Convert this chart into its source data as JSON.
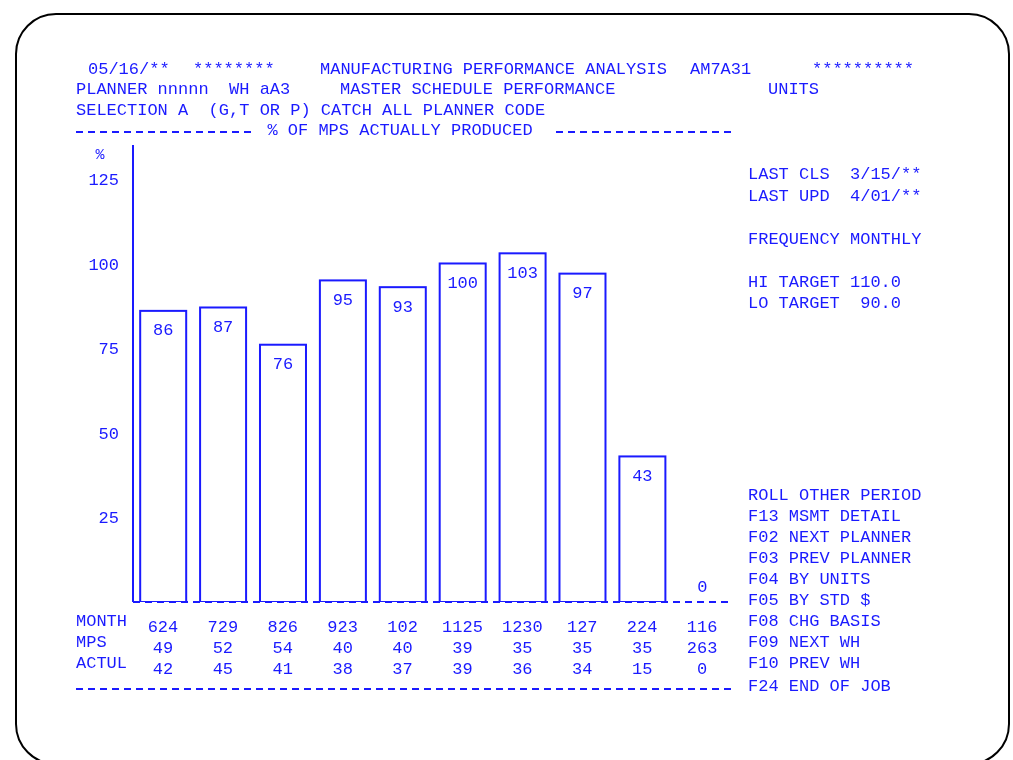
{
  "chart_data": {
    "type": "bar",
    "title": "MANUFACTURING PERFORMANCE ANALYSIS",
    "subtitle": "% OF MPS ACTUALLY PRODUCED",
    "ylabel": "%",
    "categories": [
      "624",
      "729",
      "826",
      "923",
      "102",
      "1125",
      "1230",
      "127",
      "224",
      "116"
    ],
    "values": [
      86,
      87,
      76,
      95,
      93,
      100,
      103,
      97,
      43,
      0
    ],
    "color": "#1a1aff",
    "data_labels": true,
    "ylim": [
      0,
      135
    ],
    "yticks": [
      25,
      50,
      75,
      100,
      125
    ],
    "grid": false,
    "legend": false,
    "annotations": [
      "05/16/**",
      "********",
      "AM7A31",
      "**********",
      "PLANNER nnnnn  WH aA3",
      "MASTER SCHEDULE PERFORMANCE",
      "UNITS",
      "SELECTION A  (G,T OR P) CATCH ALL PLANNER CODE",
      "LAST CLS  3/15/**",
      "LAST UPD  4/01/**",
      "FREQUENCY MONTHLY",
      "HI TARGET 110.0",
      "LO TARGET  90.0",
      "ROLL OTHER PERIOD",
      "F13 MSMT DETAIL",
      "F02 NEXT PLANNER",
      "F03 PREV PLANNER",
      "F04 BY UNITS",
      "F05 BY STD $",
      "F08 CHG BASIS",
      "F09 NEXT WH",
      "F10 PREV WH",
      "F24 END OF JOB",
      "MONTH",
      "MPS",
      "ACTUL",
      "49",
      "52",
      "54",
      "40",
      "40",
      "39",
      "35",
      "35",
      "35",
      "263",
      "42",
      "45",
      "41",
      "38",
      "37",
      "39",
      "36",
      "34",
      "15",
      "0"
    ]
  }
}
